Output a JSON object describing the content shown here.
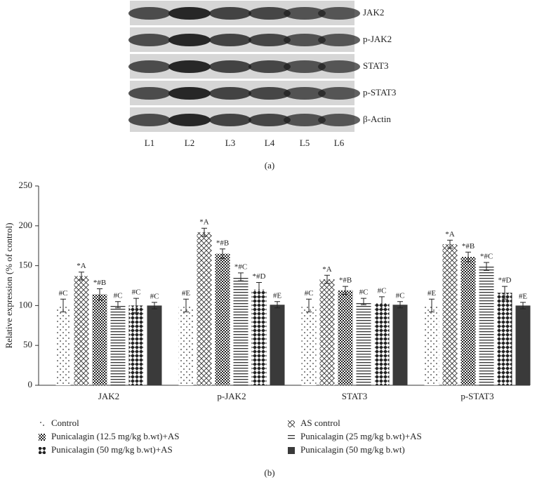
{
  "blot": {
    "labels": [
      "JAK2",
      "p-JAK2",
      "STAT3",
      "p-STAT3",
      "β-Actin"
    ],
    "lanes": [
      "L1",
      "L2",
      "L3",
      "L4",
      "L5",
      "L6"
    ],
    "caption": "(a)"
  },
  "chart_data": {
    "type": "bar",
    "caption": "(b)",
    "y_label": "Relative expression (% of control)",
    "categories": [
      "JAK2",
      "p-JAK2",
      "STAT3",
      "p-STAT3"
    ],
    "ylim": [
      0,
      250
    ],
    "yticks": [
      0,
      50,
      100,
      150,
      200,
      250
    ],
    "series": [
      {
        "name": "Control",
        "color": "#444444",
        "pattern": "dots",
        "values": [
          100,
          100,
          100,
          100
        ],
        "errors": [
          8,
          8,
          8,
          8
        ],
        "annotations": [
          "#C",
          "#E",
          "#C",
          "#E"
        ]
      },
      {
        "name": "AS control",
        "color": "#444444",
        "pattern": "crosshatch",
        "values": [
          137,
          192,
          133,
          177
        ],
        "errors": [
          5,
          5,
          5,
          5
        ],
        "annotations": [
          "*A",
          "*A",
          "*A",
          "*A"
        ]
      },
      {
        "name": "Punicalagin (12.5 mg/kg b.wt)+AS",
        "color": "#333333",
        "pattern": "checker",
        "values": [
          114,
          165,
          119,
          161
        ],
        "errors": [
          7,
          6,
          5,
          6
        ],
        "annotations": [
          "*#B",
          "*#B",
          "*#B",
          "*#B"
        ]
      },
      {
        "name": "Punicalagin (25 mg/kg b.wt)+AS",
        "color": "#444444",
        "pattern": "hlines",
        "values": [
          101,
          136,
          105,
          149
        ],
        "errors": [
          4,
          5,
          4,
          5
        ],
        "annotations": [
          "#C",
          "*#C",
          "#C",
          "*#C"
        ]
      },
      {
        "name": "Punicalagin (50 mg/kg b.wt)+AS",
        "color": "#333333",
        "pattern": "diamonds",
        "values": [
          100,
          120,
          103,
          116
        ],
        "errors": [
          9,
          9,
          8,
          8
        ],
        "annotations": [
          "#C",
          "*#D",
          "#C",
          "*#D"
        ]
      },
      {
        "name": "Punicalagin (50 mg/kg b.wt)",
        "color": "#3a3a3a",
        "pattern": "solid",
        "values": [
          100,
          101,
          101,
          100
        ],
        "errors": [
          4,
          4,
          4,
          4
        ],
        "annotations": [
          "#C",
          "#E",
          "#C",
          "#E"
        ]
      }
    ]
  }
}
